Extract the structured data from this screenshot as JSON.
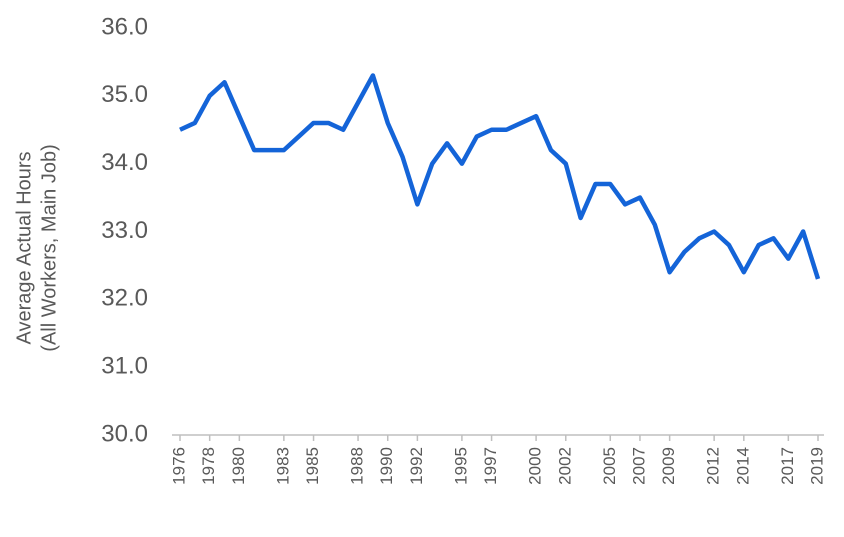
{
  "chart_data": {
    "type": "line",
    "y_label": [
      "Average Actual Hours",
      "(All Workers, Main Job)"
    ],
    "categories": [
      "1976",
      null,
      "1978",
      null,
      "1980",
      null,
      null,
      "1983",
      null,
      "1985",
      null,
      null,
      "1988",
      null,
      "1990",
      null,
      "1992",
      null,
      null,
      "1995",
      null,
      "1997",
      null,
      null,
      "2000",
      null,
      "2002",
      null,
      null,
      "2005",
      null,
      "2007",
      null,
      "2009",
      null,
      null,
      "2012",
      null,
      "2014",
      null,
      null,
      "2017",
      null,
      "2019"
    ],
    "series": [
      {
        "name": "Average Actual Hours",
        "color": "#1464d8",
        "values": [
          34.5,
          34.6,
          35.0,
          35.2,
          34.7,
          34.2,
          34.2,
          34.2,
          34.4,
          34.6,
          34.6,
          34.5,
          34.9,
          35.3,
          34.6,
          34.1,
          33.4,
          34.0,
          34.3,
          34.0,
          34.4,
          34.5,
          34.5,
          34.6,
          34.7,
          34.2,
          34.0,
          33.2,
          33.7,
          33.7,
          33.4,
          33.5,
          33.1,
          32.4,
          32.7,
          32.9,
          33.0,
          32.8,
          32.4,
          32.8,
          32.9,
          32.6,
          33.0,
          32.3
        ]
      }
    ],
    "ylim": [
      30,
      36
    ],
    "yticks": [
      {
        "value": 30,
        "label": "30.0"
      },
      {
        "value": 31,
        "label": "31.0"
      },
      {
        "value": 32,
        "label": "32.0"
      },
      {
        "value": 33,
        "label": "33.0"
      },
      {
        "value": 34,
        "label": "34.0"
      },
      {
        "value": 35,
        "label": "35.0"
      },
      {
        "value": 36,
        "label": "36.0"
      }
    ]
  }
}
